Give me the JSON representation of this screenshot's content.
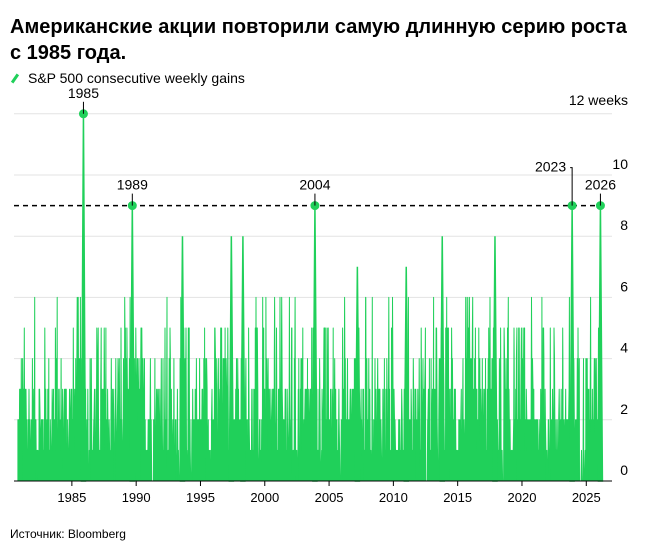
{
  "title": "Американские акции повторили самую длинную серию роста с 1985 года.",
  "legend": {
    "label": "S&P 500 consecutive weekly gains",
    "color": "#20d05a"
  },
  "source": "Источник: Bloomberg",
  "chart_data": {
    "type": "area",
    "title": "Американские акции повторили самую длинную серию роста с 1985 года.",
    "series": [
      {
        "name": "S&P 500 consecutive weekly gains",
        "color": "#20d05a"
      }
    ],
    "xlim": [
      1980.5,
      2027.0
    ],
    "ylim": [
      0,
      12
    ],
    "y_ticks": [
      0,
      2,
      4,
      6,
      8,
      10
    ],
    "y_unit_label": "12 weeks",
    "x_ticks": [
      1985,
      1990,
      1995,
      2000,
      2005,
      2010,
      2015,
      2020,
      2025
    ],
    "grid": true,
    "reference_line": {
      "value": 9,
      "style": "dashed"
    },
    "annotations": [
      {
        "label": "1985",
        "x": 1985.9,
        "y": 12
      },
      {
        "label": "1989",
        "x": 1989.7,
        "y": 9
      },
      {
        "label": "2004",
        "x": 2003.9,
        "y": 9
      },
      {
        "label": "2023",
        "x": 2023.9,
        "y": 9
      },
      {
        "label": "2026",
        "x": 2026.1,
        "y": 9
      }
    ],
    "spikes": [
      {
        "x": 1985.9,
        "y": 12
      },
      {
        "x": 1989.7,
        "y": 9
      },
      {
        "x": 1993.6,
        "y": 8
      },
      {
        "x": 1997.4,
        "y": 8
      },
      {
        "x": 1998.3,
        "y": 8
      },
      {
        "x": 2003.9,
        "y": 9
      },
      {
        "x": 2007.2,
        "y": 7
      },
      {
        "x": 2011.0,
        "y": 7
      },
      {
        "x": 2013.8,
        "y": 8
      },
      {
        "x": 2017.9,
        "y": 8
      },
      {
        "x": 2023.9,
        "y": 9
      },
      {
        "x": 2026.1,
        "y": 9
      }
    ]
  }
}
